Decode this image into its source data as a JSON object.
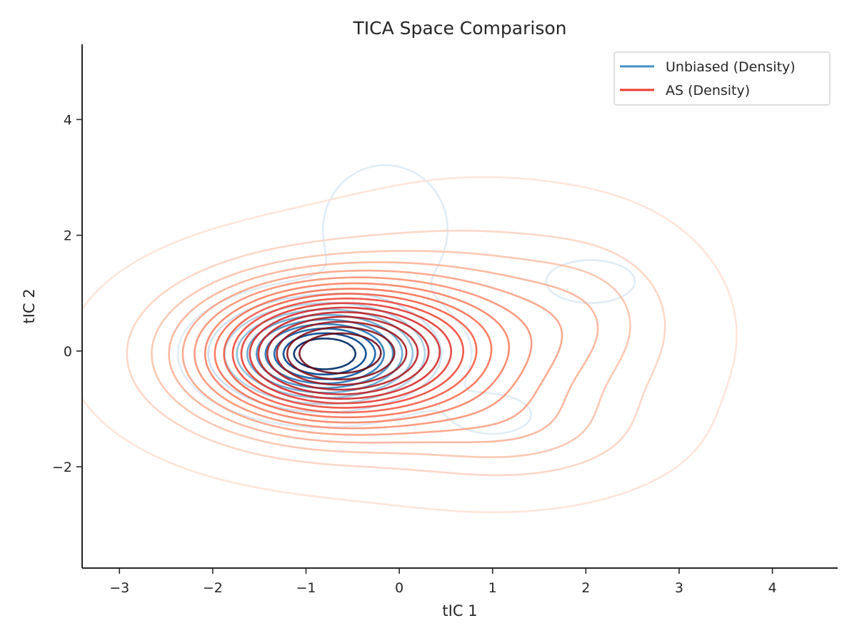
{
  "chart_data": {
    "type": "contour",
    "title": "TICA Space Comparison",
    "xlabel": "tIC 1",
    "ylabel": "tIC 2",
    "xlim": [
      -3.4,
      4.7
    ],
    "ylim": [
      -3.75,
      5.3
    ],
    "xticks": [
      -3,
      -2,
      -1,
      0,
      1,
      2,
      3,
      4
    ],
    "yticks": [
      -2,
      0,
      2,
      4
    ],
    "xtick_labels": [
      "−3",
      "−2",
      "−1",
      "0",
      "1",
      "2",
      "3",
      "4"
    ],
    "ytick_labels": [
      "−2",
      "0",
      "2",
      "4"
    ],
    "grid": false,
    "legend_position": "top-right",
    "series": [
      {
        "name": "Unbiased (Density)",
        "color": "#4292c6",
        "colormap": "Blues",
        "levels": 10,
        "components": [
          {
            "mx": -0.8,
            "my": -0.05,
            "sx": 0.62,
            "sy": 0.5,
            "w": 1.0
          },
          {
            "mx": -0.15,
            "my": 2.1,
            "sx": 0.45,
            "sy": 0.75,
            "w": 0.12
          },
          {
            "mx": 2.05,
            "my": 1.2,
            "sx": 0.45,
            "sy": 0.35,
            "w": 0.07
          },
          {
            "mx": 1.0,
            "my": -1.1,
            "sx": 0.35,
            "sy": 0.28,
            "w": 0.08
          }
        ]
      },
      {
        "name": "AS (Density)",
        "color": "#ef3b2c",
        "colormap": "Reds",
        "levels": 17,
        "components": [
          {
            "mx": -0.75,
            "my": -0.05,
            "sx": 0.95,
            "sy": 0.8,
            "w": 1.0
          },
          {
            "mx": 0.9,
            "my": 0.2,
            "sx": 1.1,
            "sy": 1.15,
            "w": 0.25
          },
          {
            "mx": 2.1,
            "my": 0.7,
            "sx": 0.55,
            "sy": 0.8,
            "w": 0.06
          },
          {
            "mx": 1.3,
            "my": -1.4,
            "sx": 0.8,
            "sy": 0.55,
            "w": 0.1
          }
        ]
      }
    ]
  }
}
